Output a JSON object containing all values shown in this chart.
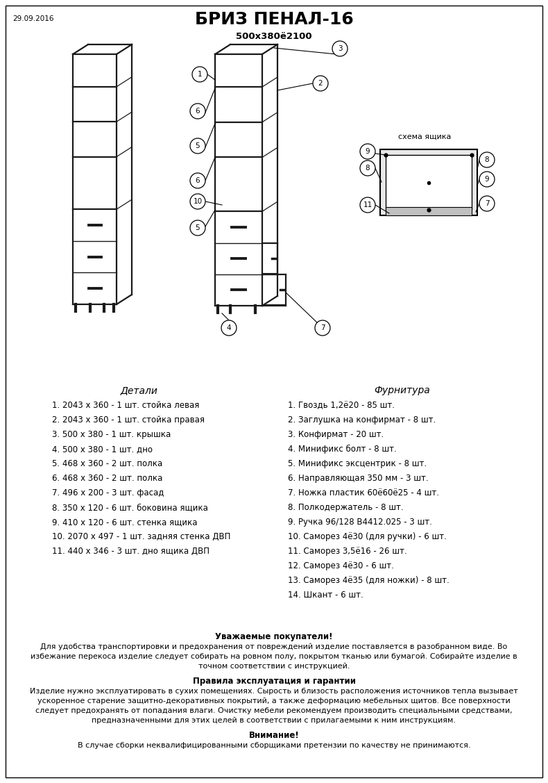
{
  "date": "29.09.2016",
  "title": "БРИЗ ПЕНАЛ-16",
  "subtitle": "500х380ё2100",
  "bg_color": "#ffffff",
  "details_header": "Детали",
  "hardware_header": "Фурнитура",
  "details": [
    "1. 2043 х 360 - 1 шт. стойка левая",
    "2. 2043 х 360 - 1 шт. стойка правая",
    "3. 500 х 380 - 1 шт. крышка",
    "4. 500 х 380 - 1 шт. дно",
    "5. 468 х 360 - 2 шт. полка",
    "6. 468 х 360 - 2 шт. полка",
    "7. 496 х 200 - 3 шт. фасад",
    "8. 350 х 120 - 6 шт. боковина ящика",
    "9. 410 х 120 - 6 шт. стенка ящика",
    "10. 2070 х 497 - 1 шт. задняя стенка ДВП",
    "11. 440 х 346 - 3 шт. дно ящика ДВП"
  ],
  "hardware": [
    "1. Гвоздь 1,2ё20 - 85 шт.",
    "2. Заглушка на конфирмат - 8 шт.",
    "3. Конфирмат - 20 шт.",
    "4. Минификс болт - 8 шт.",
    "5. Минификс эксцентрик - 8 шт.",
    "6. Направляющая 350 мм - 3 шт.",
    "7. Ножка пластик 60ё60ё25 - 4 шт.",
    "8. Полкодержатель - 8 шт.",
    "9. Ручка 96/128 В4412.025 - 3 шт.",
    "10. Саморез 4ё30 (для ручки) - 6 шт.",
    "11. Саморез 3,5ё16 - 26 шт.",
    "12. Саморез 4ё30 - 6 шт.",
    "13. Саморез 4ё35 (для ножки) - 8 шт.",
    "14. Шкант - 6 шт."
  ],
  "note_title1": "Уважаемые покупатели!",
  "note_text1": "Для удобства транспортировки и предохранения от повреждений изделие поставляется в разобранном виде. Во\nизбежание перекоса изделие следует собирать на ровном полу, покрытом тканью или бумагой. Собирайте изделие в\nточном соответствии с инструкцией.",
  "note_title2": "Правила эксплуатация и гарантии",
  "note_text2": "Изделие нужно эксплуатировать в сухих помещениях. Сырость и близость расположения источников тепла вызывает\nускоренное старение защитно-декоративных покрытий, а также деформацию мебельных щитов. Все поверхности\nследует предохранять от попадания влаги. Очистку мебели рекомендуем производить специальными средствами,\nпредназначенными для этих целей в соответствии с прилагаемыми к ним инструкциям.",
  "note_title3": "Внимание!",
  "note_text3": "В случае сборки неквалифицированными сборщиками претензии по качеству не принимаются."
}
